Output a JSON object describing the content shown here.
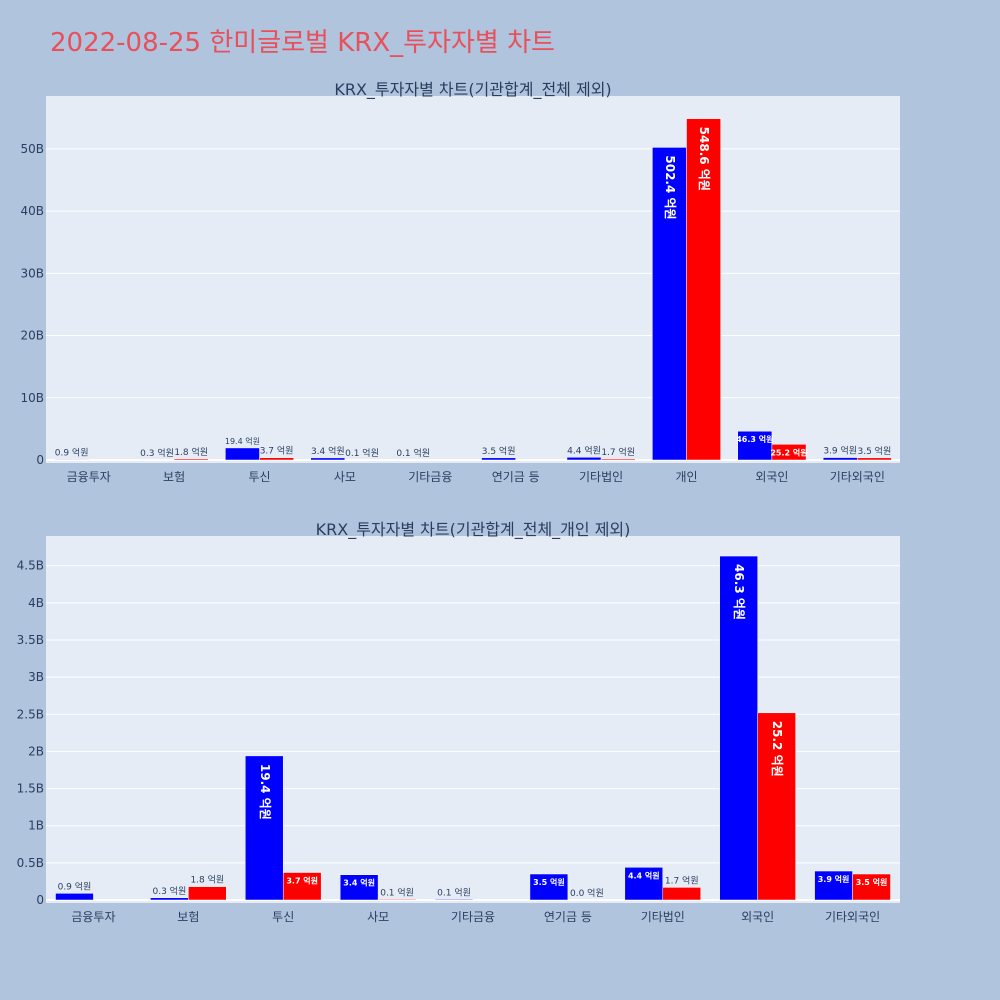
{
  "page": {
    "title": "2022-08-25 한미글로벌 KRX_투자자별 차트"
  },
  "colors": {
    "background": "#b0c4de",
    "plot_bg": "#e5ecf6",
    "buy": "#0000ff",
    "sell": "#ff0000",
    "title": "#e8505b",
    "text": "#2a3f5f"
  },
  "chart_data": [
    {
      "type": "bar",
      "title": "KRX_투자자별 차트(기관합계_전체 제외)",
      "categories": [
        "금융투자",
        "보험",
        "투신",
        "사모",
        "기타금융",
        "연기금 등",
        "기타법인",
        "개인",
        "외국인",
        "기타외국인"
      ],
      "series": [
        {
          "values": [
            90000000,
            30000000,
            1940000000,
            340000000,
            10000000,
            350000000,
            440000000,
            50240000000,
            4630000000,
            390000000
          ],
          "labels": [
            "0.9 억원",
            "0.3 억원",
            "19.4 억원",
            "3.4 억원",
            "0.1 억원",
            "3.5 억원",
            "4.4 억원",
            "502.4 억원",
            "46.3 억원",
            "3.9 억원"
          ]
        },
        {
          "values": [
            null,
            180000000,
            370000000,
            10000000,
            null,
            null,
            170000000,
            54860000000,
            2520000000,
            350000000
          ],
          "labels": [
            null,
            "1.8 억원",
            "3.7 억원",
            "0.1 억원",
            null,
            null,
            "1.7 억원",
            "548.6 억원",
            "25.2 억원",
            "3.5 억원"
          ]
        }
      ],
      "yticks": [
        0,
        10000000000,
        20000000000,
        30000000000,
        40000000000,
        50000000000
      ],
      "ytick_labels": [
        "0",
        "10B",
        "20B",
        "30B",
        "40B",
        "50B"
      ],
      "ylim": [
        0,
        58500000000
      ],
      "grid": true
    },
    {
      "type": "bar",
      "title": "KRX_투자자별 차트(기관합계_전체_개인 제외)",
      "categories": [
        "금융투자",
        "보험",
        "투신",
        "사모",
        "기타금융",
        "연기금 등",
        "기타법인",
        "외국인",
        "기타외국인"
      ],
      "series": [
        {
          "values": [
            90000000,
            30000000,
            1940000000,
            340000000,
            10000000,
            350000000,
            440000000,
            4630000000,
            390000000
          ],
          "labels": [
            "0.9 억원",
            "0.3 억원",
            "19.4 억원",
            "3.4 억원",
            "0.1 억원",
            "3.5 억원",
            "4.4 억원",
            "46.3 억원",
            "3.9 억원"
          ]
        },
        {
          "values": [
            null,
            180000000,
            370000000,
            10000000,
            null,
            0,
            170000000,
            2520000000,
            350000000
          ],
          "labels": [
            null,
            "1.8 억원",
            "3.7 억원",
            "0.1 억원",
            null,
            "0.0 억원",
            "1.7 억원",
            "25.2 억원",
            "3.5 억원"
          ]
        }
      ],
      "yticks": [
        0,
        500000000,
        1000000000,
        1500000000,
        2000000000,
        2500000000,
        3000000000,
        3500000000,
        4000000000,
        4500000000
      ],
      "ytick_labels": [
        "0",
        "0.5B",
        "1B",
        "1.5B",
        "2B",
        "2.5B",
        "3B",
        "3.5B",
        "4B",
        "4.5B"
      ],
      "ylim": [
        0,
        4900000000
      ],
      "grid": true
    }
  ]
}
